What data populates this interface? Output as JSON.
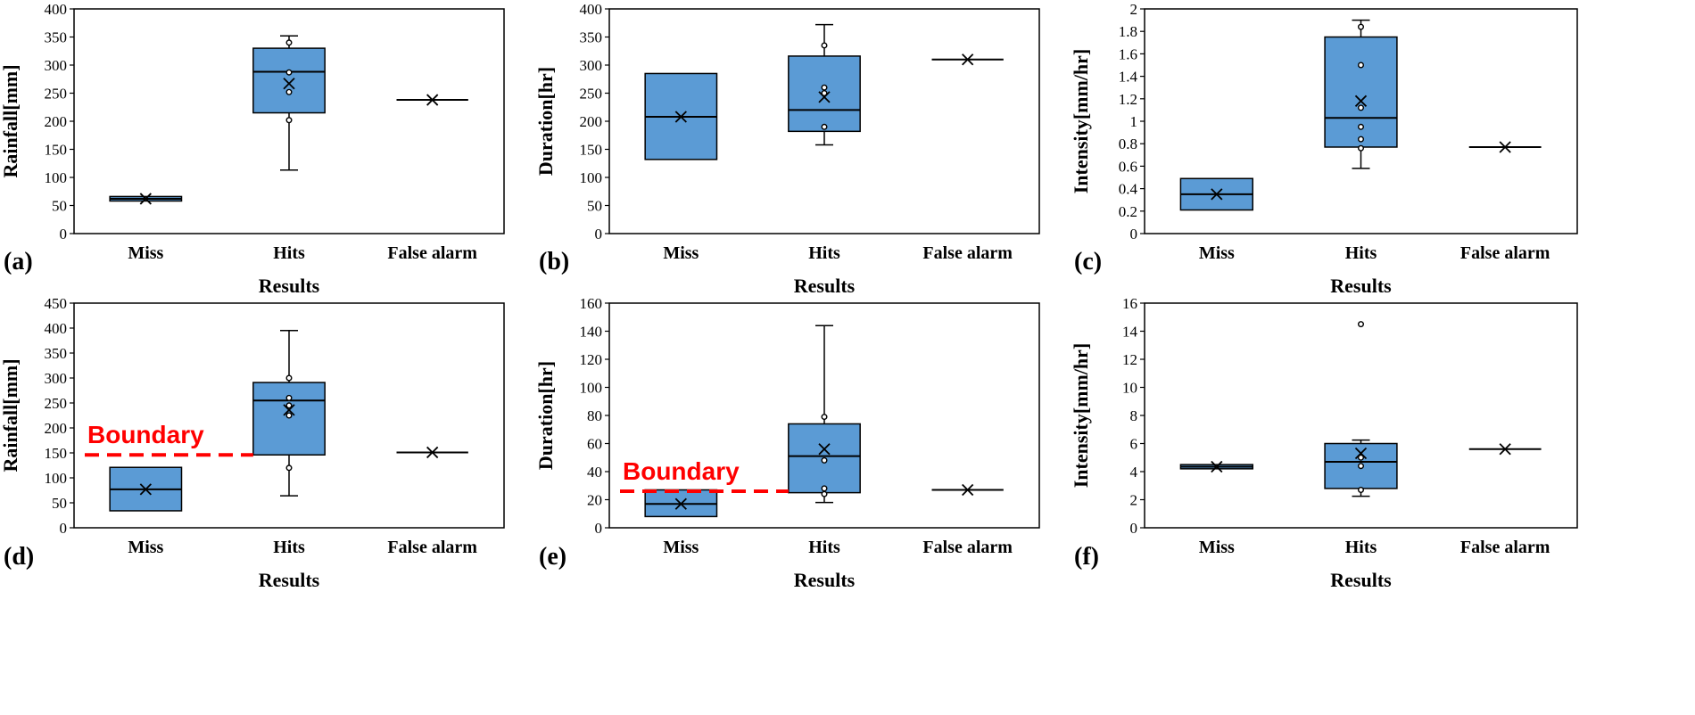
{
  "chart_data": [
    {
      "panel": "(a)",
      "type": "box",
      "xlabel": "Results",
      "ylabel": "Rainfall[mm]",
      "ylim": [
        0,
        400
      ],
      "yticks": [
        0,
        50,
        100,
        150,
        200,
        250,
        300,
        350,
        400
      ],
      "categories": [
        "Miss",
        "Hits",
        "False alarm"
      ],
      "boxes": [
        {
          "category": "Miss",
          "min": 58,
          "q1": 58,
          "median": 62,
          "q3": 66,
          "max": 66,
          "mean": 62,
          "points": []
        },
        {
          "category": "Hits",
          "min": 113,
          "q1": 215,
          "median": 288,
          "q3": 330,
          "max": 352,
          "mean": 267,
          "points": [
            202,
            252,
            287,
            340
          ]
        },
        {
          "category": "False alarm",
          "min": 238,
          "q1": 238,
          "median": 238,
          "q3": 238,
          "max": 238,
          "mean": 238,
          "points": []
        }
      ]
    },
    {
      "panel": "(b)",
      "type": "box",
      "xlabel": "Results",
      "ylabel": "Duration[hr]",
      "ylim": [
        0,
        400
      ],
      "yticks": [
        0,
        50,
        100,
        150,
        200,
        250,
        300,
        350,
        400
      ],
      "categories": [
        "Miss",
        "Hits",
        "False alarm"
      ],
      "boxes": [
        {
          "category": "Miss",
          "min": 132,
          "q1": 132,
          "median": 208,
          "q3": 285,
          "max": 285,
          "mean": 208,
          "points": []
        },
        {
          "category": "Hits",
          "min": 158,
          "q1": 182,
          "median": 220,
          "q3": 316,
          "max": 372,
          "mean": 243,
          "points": [
            190,
            250,
            260,
            335
          ]
        },
        {
          "category": "False alarm",
          "min": 310,
          "q1": 310,
          "median": 310,
          "q3": 310,
          "max": 310,
          "mean": 310,
          "points": []
        }
      ]
    },
    {
      "panel": "(c)",
      "type": "box",
      "xlabel": "Results",
      "ylabel": "Intensity[mm/hr]",
      "ylim": [
        0,
        2
      ],
      "yticks": [
        0,
        0.2,
        0.4,
        0.6,
        0.8,
        1,
        1.2,
        1.4,
        1.6,
        1.8,
        2
      ],
      "categories": [
        "Miss",
        "Hits",
        "False alarm"
      ],
      "boxes": [
        {
          "category": "Miss",
          "min": 0.21,
          "q1": 0.21,
          "median": 0.35,
          "q3": 0.49,
          "max": 0.49,
          "mean": 0.35,
          "points": []
        },
        {
          "category": "Hits",
          "min": 0.58,
          "q1": 0.77,
          "median": 1.03,
          "q3": 1.75,
          "max": 1.9,
          "mean": 1.18,
          "points": [
            0.76,
            0.84,
            0.95,
            1.12,
            1.5,
            1.84
          ]
        },
        {
          "category": "False alarm",
          "min": 0.77,
          "q1": 0.77,
          "median": 0.77,
          "q3": 0.77,
          "max": 0.77,
          "mean": 0.77,
          "points": []
        }
      ]
    },
    {
      "panel": "(d)",
      "type": "box",
      "xlabel": "Results",
      "ylabel": "Rainfall[mm]",
      "ylim": [
        0,
        450
      ],
      "yticks": [
        0,
        50,
        100,
        150,
        200,
        250,
        300,
        350,
        400,
        450
      ],
      "categories": [
        "Miss",
        "Hits",
        "False alarm"
      ],
      "boundary": {
        "value": 146,
        "label": "Boundary"
      },
      "boxes": [
        {
          "category": "Miss",
          "min": 34,
          "q1": 34,
          "median": 77,
          "q3": 121,
          "max": 121,
          "mean": 77,
          "points": []
        },
        {
          "category": "Hits",
          "min": 64,
          "q1": 146,
          "median": 255,
          "q3": 291,
          "max": 395,
          "mean": 236,
          "points": [
            120,
            225,
            245,
            260,
            300
          ]
        },
        {
          "category": "False alarm",
          "min": 151,
          "q1": 151,
          "median": 151,
          "q3": 151,
          "max": 151,
          "mean": 151,
          "points": []
        }
      ]
    },
    {
      "panel": "(e)",
      "type": "box",
      "xlabel": "Results",
      "ylabel": "Duration[hr]",
      "ylim": [
        0,
        160
      ],
      "yticks": [
        0,
        20,
        40,
        60,
        80,
        100,
        120,
        140,
        160
      ],
      "categories": [
        "Miss",
        "Hits",
        "False alarm"
      ],
      "boundary": {
        "value": 26,
        "label": "Boundary"
      },
      "boxes": [
        {
          "category": "Miss",
          "min": 8,
          "q1": 8,
          "median": 17,
          "q3": 27,
          "max": 27,
          "mean": 17,
          "points": []
        },
        {
          "category": "Hits",
          "min": 18,
          "q1": 25,
          "median": 51,
          "q3": 74,
          "max": 144,
          "mean": 56,
          "points": [
            24,
            28,
            48,
            79
          ]
        },
        {
          "category": "False alarm",
          "min": 27,
          "q1": 27,
          "median": 27,
          "q3": 27,
          "max": 27,
          "mean": 27,
          "points": []
        }
      ]
    },
    {
      "panel": "(f)",
      "type": "box",
      "xlabel": "Results",
      "ylabel": "Intensity[mm/hr]",
      "ylim": [
        0,
        16
      ],
      "yticks": [
        0,
        2,
        4,
        6,
        8,
        10,
        12,
        14,
        16
      ],
      "categories": [
        "Miss",
        "Hits",
        "False alarm"
      ],
      "boxes": [
        {
          "category": "Miss",
          "min": 4.2,
          "q1": 4.2,
          "median": 4.35,
          "q3": 4.5,
          "max": 4.5,
          "mean": 4.35,
          "points": []
        },
        {
          "category": "Hits",
          "min": 2.25,
          "q1": 2.8,
          "median": 4.7,
          "q3": 6.0,
          "max": 6.25,
          "mean": 5.3,
          "points": [
            2.7,
            4.4,
            5.0,
            14.5
          ]
        },
        {
          "category": "False alarm",
          "min": 5.6,
          "q1": 5.6,
          "median": 5.6,
          "q3": 5.6,
          "max": 5.6,
          "mean": 5.6,
          "points": []
        }
      ]
    }
  ],
  "style": {
    "box_fill": "#5b9bd5",
    "box_stroke": "#000000",
    "boundary_color": "#ff0000"
  }
}
